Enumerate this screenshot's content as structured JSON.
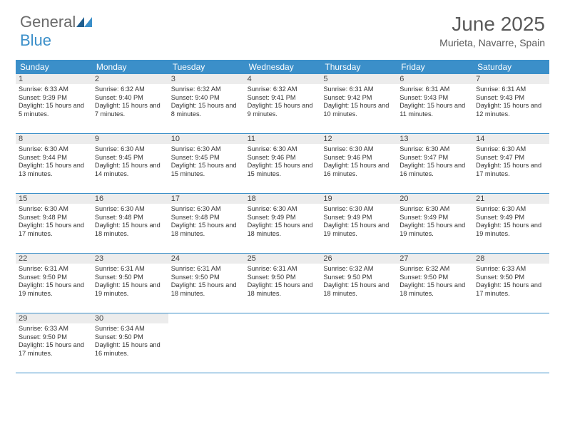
{
  "logo": {
    "general": "General",
    "blue": "Blue"
  },
  "title": "June 2025",
  "location": "Murieta, Navarre, Spain",
  "colors": {
    "header_bg": "#3b8fc9",
    "header_text": "#ffffff",
    "daynum_bg": "#ececec",
    "text": "#333333",
    "title_text": "#5a5a5a",
    "row_border": "#3b8fc9"
  },
  "day_names": [
    "Sunday",
    "Monday",
    "Tuesday",
    "Wednesday",
    "Thursday",
    "Friday",
    "Saturday"
  ],
  "weeks": [
    [
      {
        "n": 1,
        "sr": "6:33 AM",
        "ss": "9:39 PM",
        "dl": "15 hours and 5 minutes."
      },
      {
        "n": 2,
        "sr": "6:32 AM",
        "ss": "9:40 PM",
        "dl": "15 hours and 7 minutes."
      },
      {
        "n": 3,
        "sr": "6:32 AM",
        "ss": "9:40 PM",
        "dl": "15 hours and 8 minutes."
      },
      {
        "n": 4,
        "sr": "6:32 AM",
        "ss": "9:41 PM",
        "dl": "15 hours and 9 minutes."
      },
      {
        "n": 5,
        "sr": "6:31 AM",
        "ss": "9:42 PM",
        "dl": "15 hours and 10 minutes."
      },
      {
        "n": 6,
        "sr": "6:31 AM",
        "ss": "9:43 PM",
        "dl": "15 hours and 11 minutes."
      },
      {
        "n": 7,
        "sr": "6:31 AM",
        "ss": "9:43 PM",
        "dl": "15 hours and 12 minutes."
      }
    ],
    [
      {
        "n": 8,
        "sr": "6:30 AM",
        "ss": "9:44 PM",
        "dl": "15 hours and 13 minutes."
      },
      {
        "n": 9,
        "sr": "6:30 AM",
        "ss": "9:45 PM",
        "dl": "15 hours and 14 minutes."
      },
      {
        "n": 10,
        "sr": "6:30 AM",
        "ss": "9:45 PM",
        "dl": "15 hours and 15 minutes."
      },
      {
        "n": 11,
        "sr": "6:30 AM",
        "ss": "9:46 PM",
        "dl": "15 hours and 15 minutes."
      },
      {
        "n": 12,
        "sr": "6:30 AM",
        "ss": "9:46 PM",
        "dl": "15 hours and 16 minutes."
      },
      {
        "n": 13,
        "sr": "6:30 AM",
        "ss": "9:47 PM",
        "dl": "15 hours and 16 minutes."
      },
      {
        "n": 14,
        "sr": "6:30 AM",
        "ss": "9:47 PM",
        "dl": "15 hours and 17 minutes."
      }
    ],
    [
      {
        "n": 15,
        "sr": "6:30 AM",
        "ss": "9:48 PM",
        "dl": "15 hours and 17 minutes."
      },
      {
        "n": 16,
        "sr": "6:30 AM",
        "ss": "9:48 PM",
        "dl": "15 hours and 18 minutes."
      },
      {
        "n": 17,
        "sr": "6:30 AM",
        "ss": "9:48 PM",
        "dl": "15 hours and 18 minutes."
      },
      {
        "n": 18,
        "sr": "6:30 AM",
        "ss": "9:49 PM",
        "dl": "15 hours and 18 minutes."
      },
      {
        "n": 19,
        "sr": "6:30 AM",
        "ss": "9:49 PM",
        "dl": "15 hours and 19 minutes."
      },
      {
        "n": 20,
        "sr": "6:30 AM",
        "ss": "9:49 PM",
        "dl": "15 hours and 19 minutes."
      },
      {
        "n": 21,
        "sr": "6:30 AM",
        "ss": "9:49 PM",
        "dl": "15 hours and 19 minutes."
      }
    ],
    [
      {
        "n": 22,
        "sr": "6:31 AM",
        "ss": "9:50 PM",
        "dl": "15 hours and 19 minutes."
      },
      {
        "n": 23,
        "sr": "6:31 AM",
        "ss": "9:50 PM",
        "dl": "15 hours and 19 minutes."
      },
      {
        "n": 24,
        "sr": "6:31 AM",
        "ss": "9:50 PM",
        "dl": "15 hours and 18 minutes."
      },
      {
        "n": 25,
        "sr": "6:31 AM",
        "ss": "9:50 PM",
        "dl": "15 hours and 18 minutes."
      },
      {
        "n": 26,
        "sr": "6:32 AM",
        "ss": "9:50 PM",
        "dl": "15 hours and 18 minutes."
      },
      {
        "n": 27,
        "sr": "6:32 AM",
        "ss": "9:50 PM",
        "dl": "15 hours and 18 minutes."
      },
      {
        "n": 28,
        "sr": "6:33 AM",
        "ss": "9:50 PM",
        "dl": "15 hours and 17 minutes."
      }
    ],
    [
      {
        "n": 29,
        "sr": "6:33 AM",
        "ss": "9:50 PM",
        "dl": "15 hours and 17 minutes."
      },
      {
        "n": 30,
        "sr": "6:34 AM",
        "ss": "9:50 PM",
        "dl": "15 hours and 16 minutes."
      },
      null,
      null,
      null,
      null,
      null
    ]
  ],
  "labels": {
    "sunrise": "Sunrise:",
    "sunset": "Sunset:",
    "daylight": "Daylight:"
  }
}
